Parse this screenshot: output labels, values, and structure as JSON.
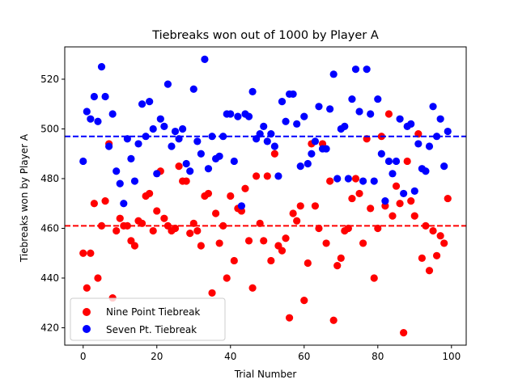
{
  "chart_data": {
    "type": "scatter",
    "title": "Tiebreaks won out of 1000 by Player A",
    "xlabel": "Trial Number",
    "ylabel": "Tiebreaks won by Player A",
    "xlim": [
      -5,
      104
    ],
    "ylim": [
      413,
      533
    ],
    "xticks": [
      0,
      20,
      40,
      60,
      80,
      100
    ],
    "yticks": [
      420,
      440,
      460,
      480,
      500,
      520
    ],
    "grid": false,
    "legend_position": "lower-left",
    "series": [
      {
        "name": "Nine Point Tiebreak",
        "color": "#ff0000",
        "mean_line": 461,
        "x": [
          0,
          1,
          2,
          3,
          4,
          5,
          6,
          7,
          8,
          9,
          10,
          11,
          12,
          13,
          14,
          15,
          16,
          17,
          18,
          19,
          20,
          21,
          22,
          23,
          24,
          25,
          26,
          27,
          28,
          29,
          30,
          31,
          32,
          33,
          34,
          35,
          36,
          37,
          38,
          39,
          40,
          41,
          42,
          43,
          44,
          45,
          46,
          47,
          48,
          49,
          50,
          51,
          52,
          53,
          54,
          55,
          56,
          57,
          58,
          59,
          60,
          61,
          62,
          63,
          64,
          65,
          66,
          67,
          68,
          69,
          70,
          71,
          72,
          73,
          74,
          75,
          76,
          77,
          78,
          79,
          80,
          81,
          82,
          83,
          84,
          85,
          86,
          87,
          88,
          89,
          90,
          91,
          92,
          93,
          94,
          95,
          96,
          97,
          98,
          99
        ],
        "y": [
          450,
          436,
          450,
          470,
          440,
          461,
          471,
          494,
          432,
          459,
          464,
          461,
          461,
          455,
          453,
          463,
          462,
          473,
          474,
          459,
          467,
          483,
          464,
          461,
          459,
          460,
          485,
          479,
          479,
          458,
          462,
          459,
          453,
          473,
          474,
          434,
          466,
          454,
          461,
          440,
          473,
          447,
          468,
          467,
          476,
          455,
          436,
          481,
          462,
          455,
          481,
          447,
          490,
          453,
          451,
          456,
          424,
          466,
          463,
          469,
          431,
          446,
          494,
          469,
          460,
          494,
          454,
          479,
          423,
          445,
          448,
          459,
          460,
          472,
          480,
          474,
          454,
          496,
          468,
          440,
          460,
          497,
          469,
          506,
          465,
          477,
          470,
          418,
          487,
          471,
          465,
          498,
          448,
          461,
          443,
          459,
          449,
          457,
          454,
          472
        ]
      },
      {
        "name": "Seven Pt. Tiebreak",
        "color": "#0000ff",
        "mean_line": 497,
        "x": [
          0,
          1,
          2,
          3,
          4,
          5,
          6,
          7,
          8,
          9,
          10,
          11,
          12,
          13,
          14,
          15,
          16,
          17,
          18,
          19,
          20,
          21,
          22,
          23,
          24,
          25,
          26,
          27,
          28,
          29,
          30,
          31,
          32,
          33,
          34,
          35,
          36,
          37,
          38,
          39,
          40,
          41,
          42,
          43,
          44,
          45,
          46,
          47,
          48,
          49,
          50,
          51,
          52,
          53,
          54,
          55,
          56,
          57,
          58,
          59,
          60,
          61,
          62,
          63,
          64,
          65,
          66,
          67,
          68,
          69,
          70,
          71,
          72,
          73,
          74,
          75,
          76,
          77,
          78,
          79,
          80,
          81,
          82,
          83,
          84,
          85,
          86,
          87,
          88,
          89,
          90,
          91,
          92,
          93,
          94,
          95,
          96,
          97,
          98,
          99
        ],
        "y": [
          487,
          507,
          504,
          513,
          503,
          525,
          513,
          493,
          506,
          483,
          478,
          470,
          496,
          488,
          479,
          494,
          510,
          497,
          511,
          500,
          482,
          504,
          501,
          518,
          493,
          499,
          496,
          500,
          486,
          483,
          516,
          495,
          490,
          528,
          484,
          497,
          488,
          489,
          497,
          506,
          506,
          487,
          505,
          469,
          506,
          505,
          515,
          496,
          498,
          501,
          495,
          498,
          493,
          481,
          511,
          503,
          514,
          514,
          502,
          485,
          505,
          486,
          490,
          495,
          509,
          492,
          492,
          508,
          522,
          480,
          500,
          501,
          480,
          512,
          524,
          507,
          479,
          524,
          506,
          479,
          512,
          490,
          471,
          487,
          482,
          487,
          504,
          474,
          501,
          502,
          475,
          494,
          484,
          483,
          493,
          509,
          497,
          504,
          485,
          499
        ]
      }
    ]
  }
}
